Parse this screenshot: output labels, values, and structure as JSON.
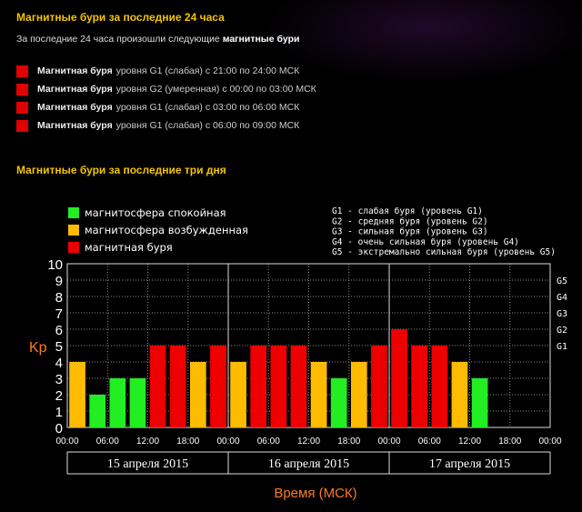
{
  "header": {
    "title": "Магнитные бури за последние 24 часа",
    "intro_text": "За последние 24 часа произошли следующие",
    "intro_bold": "магнитные бури"
  },
  "storms": [
    {
      "bold": "Магнитная буря",
      "text": "уровня  G1 (слабая) с 21:00 по 24:00 МСК"
    },
    {
      "bold": "Магнитная буря",
      "text": "уровня  G2 (умеренная) с 00:00 по 03:00 МСК"
    },
    {
      "bold": "Магнитная буря",
      "text": "уровня  G1 (слабая) с 03:00 по 06:00 МСК"
    },
    {
      "bold": "Магнитная буря",
      "text": "уровня  G1 (слабая) с 06:00 по 09:00 МСК"
    }
  ],
  "section2": {
    "title": "Магнитные бури за последние три дня"
  },
  "colors": {
    "calm": "#22ee22",
    "excited": "#ffbb00",
    "storm": "#ee0000",
    "accent": "#f4c400",
    "axis_label": "#ff7a1a"
  },
  "chart_data": {
    "type": "bar",
    "ylabel": "Kp",
    "xlabel": "Время (МСК)",
    "ylim": [
      0,
      10
    ],
    "yticks": [
      "0",
      "1",
      "2",
      "3",
      "4",
      "5",
      "6",
      "7",
      "8",
      "9",
      "10"
    ],
    "g_levels": [
      {
        "label": "G1",
        "kp": 5
      },
      {
        "label": "G2",
        "kp": 6
      },
      {
        "label": "G3",
        "kp": 7
      },
      {
        "label": "G4",
        "kp": 8
      },
      {
        "label": "G5",
        "kp": 9
      }
    ],
    "legend": [
      {
        "label": "магнитосфера спокойная",
        "status": "calm"
      },
      {
        "label": "магнитосфера возбужденная",
        "status": "excited"
      },
      {
        "label": "магнитная буря",
        "status": "storm"
      }
    ],
    "scale_legend": [
      "G1 - слабая буря (уровень G1)",
      "G2 - средняя буря (уровень G2)",
      "G3 - сильная буря (уровень G3)",
      "G4 - очень сильная буря (уровень G4)",
      "G5 - экстремально сильная буря (уровень G5)"
    ],
    "slots_per_day": 8,
    "time_ticks": [
      "00:00",
      "06:00",
      "12:00",
      "18:00",
      "00:00",
      "06:00",
      "12:00",
      "18:00",
      "00:00",
      "06:00",
      "12:00",
      "18:00",
      "00:00"
    ],
    "days": [
      {
        "label": "15 апреля 2015",
        "values": [
          4,
          2,
          3,
          3,
          5,
          5,
          4,
          5
        ]
      },
      {
        "label": "16 апреля 2015",
        "values": [
          4,
          5,
          5,
          5,
          4,
          3,
          4,
          5
        ]
      },
      {
        "label": "17 апреля 2015",
        "values": [
          6,
          5,
          5,
          4,
          3
        ]
      }
    ]
  }
}
